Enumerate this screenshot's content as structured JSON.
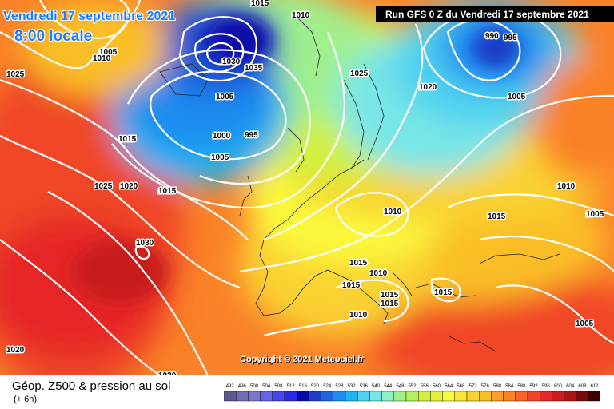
{
  "header": {
    "date_title": "Vendredi 17 septembre 2021",
    "time_title": "8:00 locale",
    "run_info": "Run GFS 0 Z du Vendredi 17 septembre 2021"
  },
  "copyright": "Copyright © 2021 Meteociel.fr",
  "footer": {
    "variable_label": "Géop. Z500 & pression au sol",
    "lead_label": "(+ 6h)"
  },
  "scale": {
    "values": [
      "492",
      "496",
      "500",
      "504",
      "508",
      "512",
      "516",
      "520",
      "524",
      "528",
      "532",
      "536",
      "540",
      "544",
      "548",
      "552",
      "556",
      "560",
      "564",
      "568",
      "572",
      "576",
      "580",
      "584",
      "588",
      "592",
      "596",
      "600",
      "604",
      "608",
      "612"
    ],
    "colors": [
      "#5a5a8c",
      "#6e6eb4",
      "#7878d2",
      "#6464e6",
      "#4646f0",
      "#2828e6",
      "#0a0aaa",
      "#1e3cc8",
      "#1e64dc",
      "#1e8cf0",
      "#1eb4f0",
      "#50d2f0",
      "#78e6e6",
      "#8cf0c8",
      "#a0f08c",
      "#b4f05a",
      "#d2f03c",
      "#e6f03c",
      "#fafa3c",
      "#fae632",
      "#fad232",
      "#fabe28",
      "#faa028",
      "#fa8228",
      "#fa6428",
      "#f04628",
      "#e62828",
      "#c81e1e",
      "#aa1414",
      "#780a0a",
      "#3c0000"
    ]
  },
  "isobars": [
    {
      "label": "1015"
    },
    {
      "label": "1010"
    },
    {
      "label": "1005"
    },
    {
      "label": "1010"
    },
    {
      "label": "1025"
    },
    {
      "label": "1030"
    },
    {
      "label": "1035"
    },
    {
      "label": "1005"
    },
    {
      "label": "1000"
    },
    {
      "label": "995"
    },
    {
      "label": "1015"
    },
    {
      "label": "1005"
    },
    {
      "label": "1025"
    },
    {
      "label": "1020"
    },
    {
      "label": "1015"
    },
    {
      "label": "1030"
    },
    {
      "label": "1020"
    },
    {
      "label": "1020"
    },
    {
      "label": "1025"
    },
    {
      "label": "1020"
    },
    {
      "label": "990"
    },
    {
      "label": "995"
    },
    {
      "label": "1005"
    },
    {
      "label": "1010"
    },
    {
      "label": "1015"
    },
    {
      "label": "1010"
    },
    {
      "label": "1005"
    },
    {
      "label": "1015"
    },
    {
      "label": "1010"
    },
    {
      "label": "1015"
    },
    {
      "label": "1015"
    },
    {
      "label": "1015"
    },
    {
      "label": "1015"
    },
    {
      "label": "1010"
    },
    {
      "label": "1005"
    }
  ]
}
